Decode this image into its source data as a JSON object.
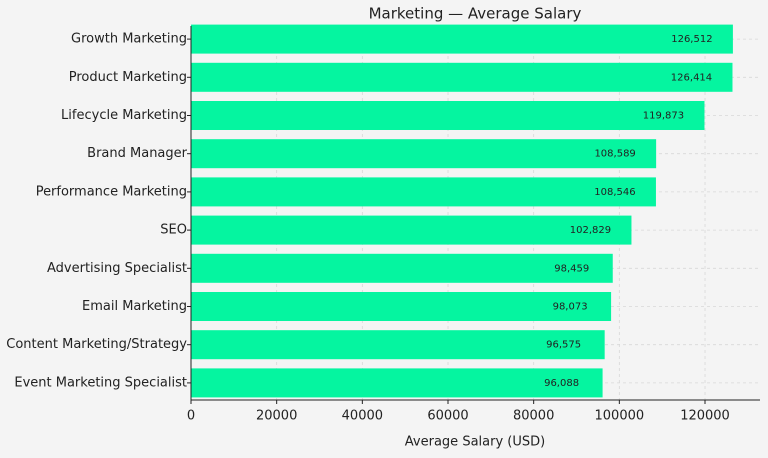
{
  "chart_data": {
    "type": "barh",
    "title": "Marketing — Average Salary",
    "xlabel": "Average Salary (USD)",
    "categories": [
      "Growth Marketing",
      "Product Marketing",
      "Lifecycle Marketing",
      "Brand Manager",
      "Performance Marketing",
      "SEO",
      "Advertising Specialist",
      "Email Marketing",
      "Content Marketing/Strategy",
      "Event Marketing Specialist"
    ],
    "values": [
      126512,
      126414,
      119873,
      108589,
      108546,
      102829,
      98459,
      98073,
      96575,
      96088
    ],
    "value_labels": [
      "126,512",
      "126,414",
      "119,873",
      "108,589",
      "108,546",
      "102,829",
      "98,459",
      "98,073",
      "96,575",
      "96,088"
    ],
    "color": "#05f5a0",
    "xlim": [
      0,
      132838
    ],
    "xticks": [
      0,
      20000,
      40000,
      60000,
      80000,
      100000,
      120000
    ],
    "grid": true
  }
}
